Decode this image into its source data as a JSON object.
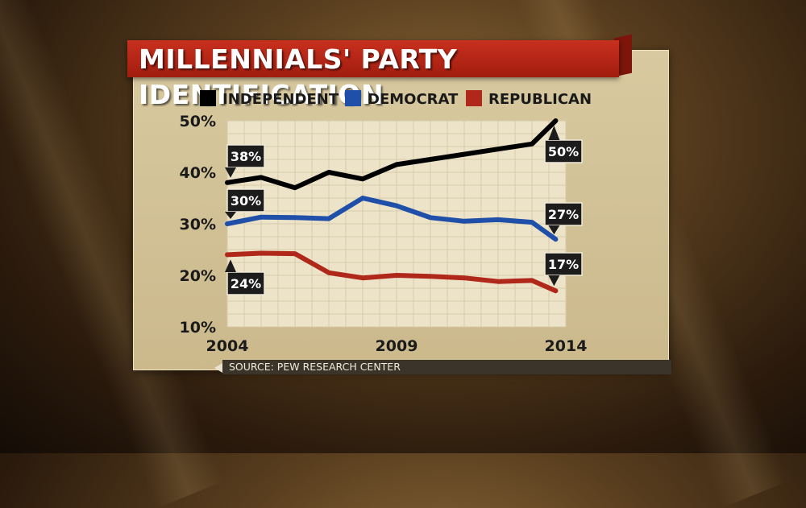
{
  "title": "MILLENNIALS' PARTY IDENTIFICATION",
  "source": "SOURCE: PEW RESEARCH CENTER",
  "chart_data": {
    "type": "line",
    "title": "MILLENNIALS' PARTY IDENTIFICATION",
    "xlabel": "",
    "ylabel": "",
    "x": [
      2004,
      2005,
      2006,
      2007,
      2008,
      2009,
      2010,
      2011,
      2012,
      2013,
      2014
    ],
    "xlim": [
      2004,
      2014
    ],
    "ylim": [
      10,
      50
    ],
    "x_ticks": [
      "2004",
      "2009",
      "2014"
    ],
    "y_ticks": [
      "10%",
      "20%",
      "30%",
      "40%",
      "50%"
    ],
    "grid": true,
    "legend_position": "top",
    "series": [
      {
        "name": "INDEPENDENT",
        "color": "#000000",
        "points": [
          [
            2004,
            38
          ],
          [
            2005,
            39
          ],
          [
            2006,
            37
          ],
          [
            2007,
            40
          ],
          [
            2008,
            38.7
          ],
          [
            2009,
            41.5
          ],
          [
            2010,
            42.5
          ],
          [
            2011,
            43.5
          ],
          [
            2012,
            44.5
          ],
          [
            2013,
            45.5
          ],
          [
            2013.7,
            50
          ]
        ],
        "start_label": "38%",
        "end_label": "50%"
      },
      {
        "name": "DEMOCRAT",
        "color": "#1f4fa8",
        "points": [
          [
            2004,
            30
          ],
          [
            2005,
            31.3
          ],
          [
            2006,
            31.2
          ],
          [
            2007,
            31
          ],
          [
            2008,
            35
          ],
          [
            2009,
            33.5
          ],
          [
            2010,
            31.2
          ],
          [
            2011,
            30.5
          ],
          [
            2012,
            30.8
          ],
          [
            2013,
            30.3
          ],
          [
            2013.7,
            27
          ]
        ],
        "start_label": "30%",
        "end_label": "27%"
      },
      {
        "name": "REPUBLICAN",
        "color": "#b0281a",
        "points": [
          [
            2004,
            24
          ],
          [
            2005,
            24.3
          ],
          [
            2006,
            24.2
          ],
          [
            2007,
            20.5
          ],
          [
            2008,
            19.5
          ],
          [
            2009,
            20
          ],
          [
            2010,
            19.8
          ],
          [
            2011,
            19.5
          ],
          [
            2012,
            18.8
          ],
          [
            2013,
            19
          ],
          [
            2013.7,
            17
          ]
        ],
        "start_label": "24%",
        "end_label": "17%"
      }
    ]
  }
}
